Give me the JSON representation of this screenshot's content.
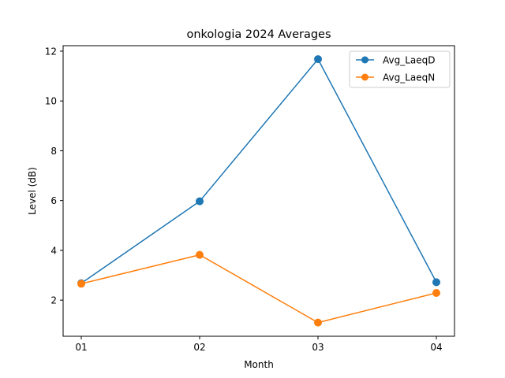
{
  "chart_data": {
    "type": "line",
    "title": "onkologia 2024 Averages",
    "xlabel": "Month",
    "ylabel": "Level (dB)",
    "categories": [
      "01",
      "02",
      "03",
      "04"
    ],
    "ylim": [
      0.55,
      12.22
    ],
    "yticks": [
      2,
      4,
      6,
      8,
      10,
      12
    ],
    "grid": false,
    "legend_position": "top-right",
    "series": [
      {
        "name": "Avg_LaeqD",
        "color": "#1f77b4",
        "values": [
          2.68,
          5.97,
          11.68,
          2.72
        ]
      },
      {
        "name": "Avg_LaeqN",
        "color": "#ff7f0e",
        "values": [
          2.66,
          3.82,
          1.1,
          2.29
        ]
      }
    ]
  }
}
